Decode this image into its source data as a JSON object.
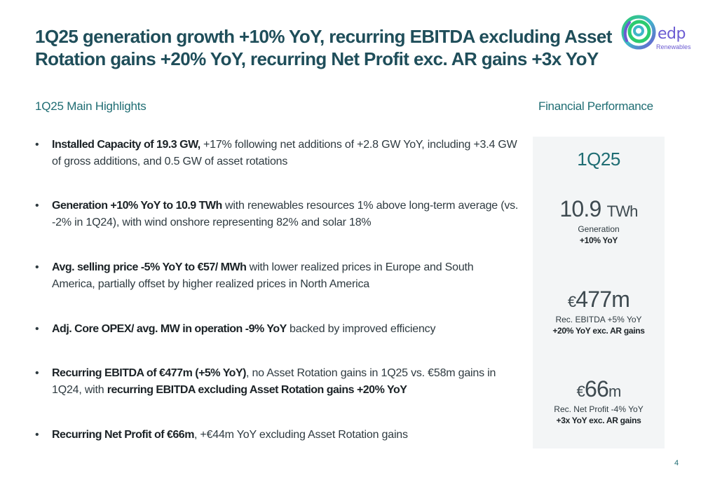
{
  "title": {
    "line1": "1Q25 generation growth +10% YoY, recurring EBITDA excluding Asset",
    "line2": "Rotation gains +20% YoY, recurring Net Profit exc. AR gains +3x YoY"
  },
  "logo": {
    "word": "edp",
    "sub": "Renewables"
  },
  "highlights": {
    "heading": "1Q25 Main Highlights",
    "bullet_char": "•",
    "items": [
      {
        "bold": "Installed Capacity of 19.3 GW,",
        "text": " +17% following net additions of +2.8 GW YoY, including +3.4 GW of gross additions,  and 0.5 GW of asset rotations"
      },
      {
        "bold": "Generation +10% YoY to 10.9 TWh",
        "text": " with renewables resources 1% above long-term average (vs. -2% in 1Q24), with wind onshore representing 82% and solar 18%"
      },
      {
        "bold": "Avg. selling price -5% YoY to €57/ MWh",
        "text": " with lower realized prices in Europe and South America, partially offset by higher realized prices in North America"
      },
      {
        "bold": "Adj. Core OPEX/ avg. MW in operation -9% YoY",
        "text": " backed by improved efficiency"
      },
      {
        "bold": "Recurring EBITDA of €477m (+5% YoY)",
        "text": ", no Asset Rotation gains in 1Q25 vs. €58m gains in 1Q24, with ",
        "bold2": "recurring EBITDA excluding Asset Rotation gains +20% YoY"
      },
      {
        "bold": "Recurring Net Profit of €66m",
        "text": ", +€44m YoY excluding Asset Rotation gains"
      }
    ]
  },
  "financial": {
    "heading": "Financial Performance",
    "period": "1Q25",
    "generation": {
      "value": "10.9",
      "unit": "TWh",
      "label": "Generation",
      "growth": "+10% YoY"
    },
    "ebitda": {
      "currency": "€",
      "value": "477",
      "unit": "m",
      "label": "Rec. EBITDA +5% YoY",
      "growth": "+20% YoY exc. AR gains"
    },
    "net_profit": {
      "currency": "€",
      "value": "66",
      "unit": "m",
      "label": "Rec. Net Profit -4% YoY",
      "growth": "+3x YoY exc. AR gains"
    }
  },
  "page_number": "4",
  "colors": {
    "title": "#1f4e5a",
    "accent": "#1f6d73",
    "panel_bg": "#f3f5f6",
    "logo_purple": "#6b5bd2",
    "logo_green": "#2ccb6f"
  }
}
